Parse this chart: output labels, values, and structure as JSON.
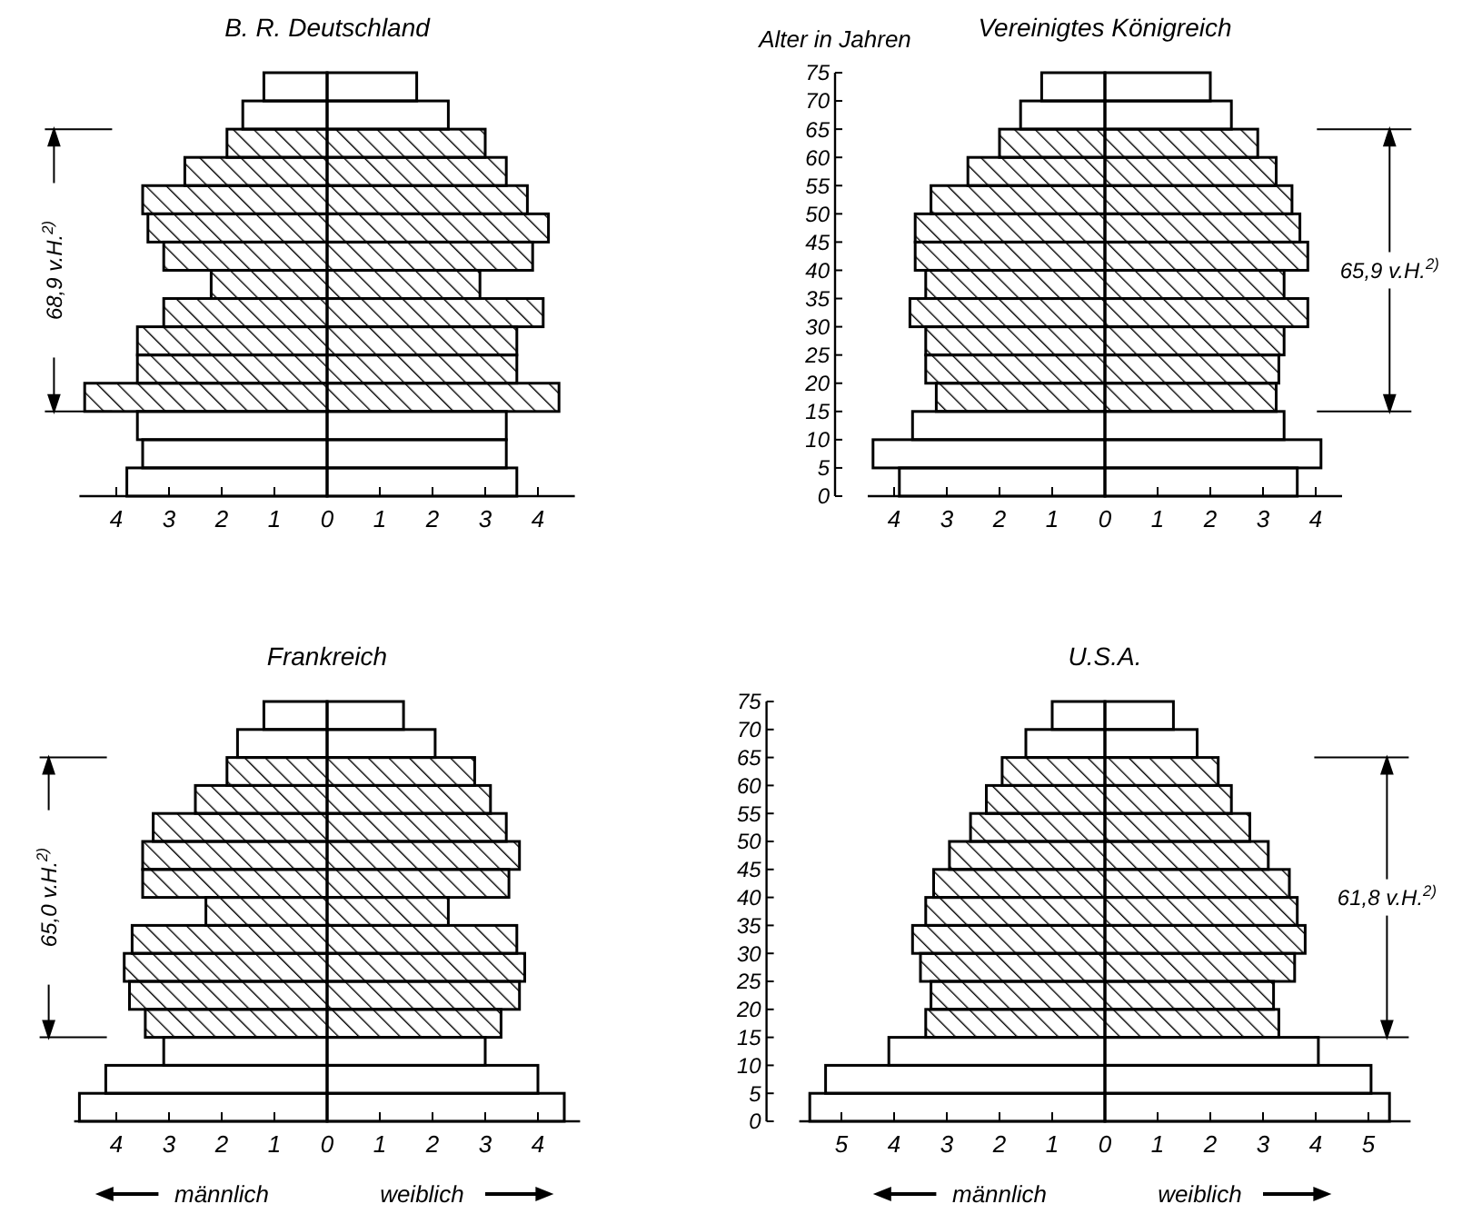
{
  "chart_data": [
    {
      "type": "histogram",
      "orientation": "horizontal",
      "title": "B. R. Deutschland",
      "bins": [
        0,
        5,
        10,
        15,
        20,
        25,
        30,
        35,
        40,
        45,
        50,
        55,
        60,
        65,
        70,
        75
      ],
      "series": [
        {
          "values": [
            -3.8,
            -3.5,
            -3.6,
            -4.6,
            -3.6,
            -3.6,
            -3.1,
            -2.2,
            -3.1,
            -3.4,
            -3.5,
            -2.7,
            -1.9,
            -1.6,
            -1.2
          ]
        },
        {
          "values": [
            3.6,
            3.4,
            3.4,
            4.4,
            3.6,
            3.6,
            4.1,
            2.9,
            3.9,
            4.2,
            3.8,
            3.4,
            3.0,
            2.3,
            1.7
          ]
        }
      ],
      "xlim": [
        -4.7,
        4.7
      ],
      "xticks": [
        {
          "value": -4,
          "label": "4"
        },
        {
          "value": -3,
          "label": "3"
        },
        {
          "value": -2,
          "label": "2"
        },
        {
          "value": -1,
          "label": "1"
        },
        0,
        1,
        2,
        3,
        4
      ],
      "ylim": [
        0,
        75
      ],
      "tick_labels": "x",
      "bands": [
        {
          "axis": "y",
          "from": 15,
          "to": 65,
          "label": "68,9 v.H.$^{2)}$"
        }
      ]
    },
    {
      "type": "histogram",
      "orientation": "horizontal",
      "title": "Vereinigtes Königreich",
      "ylabel": "Alter in Jahren",
      "bins": [
        0,
        5,
        10,
        15,
        20,
        25,
        30,
        35,
        40,
        45,
        50,
        55,
        60,
        65,
        70,
        75
      ],
      "series": [
        {
          "values": [
            -3.9,
            -4.4,
            -3.65,
            -3.2,
            -3.4,
            -3.4,
            -3.7,
            -3.4,
            -3.6,
            -3.6,
            -3.3,
            -2.6,
            -2.0,
            -1.6,
            -1.2
          ]
        },
        {
          "values": [
            3.65,
            4.1,
            3.4,
            3.25,
            3.3,
            3.4,
            3.85,
            3.4,
            3.85,
            3.7,
            3.55,
            3.25,
            2.9,
            2.4,
            2.0
          ]
        }
      ],
      "xlim": [
        -4.5,
        4.5
      ],
      "xticks": [
        {
          "value": -4,
          "label": "4"
        },
        {
          "value": -3,
          "label": "3"
        },
        {
          "value": -2,
          "label": "2"
        },
        {
          "value": -1,
          "label": "1"
        },
        0,
        1,
        2,
        3,
        4
      ],
      "ylim": [
        0,
        75
      ],
      "yticks": [
        0,
        5,
        10,
        15,
        20,
        25,
        30,
        35,
        40,
        45,
        50,
        55,
        60,
        65,
        70,
        75
      ],
      "bands": [
        {
          "axis": "y",
          "from": 15,
          "to": 65,
          "label": "65,9 v.H.$^{2)}$"
        }
      ]
    },
    {
      "type": "histogram",
      "orientation": "horizontal",
      "title": "Frankreich",
      "bins": [
        0,
        5,
        10,
        15,
        20,
        25,
        30,
        35,
        40,
        45,
        50,
        55,
        60,
        65,
        70,
        75
      ],
      "series": [
        {
          "name": "männlich",
          "values": [
            -4.7,
            -4.2,
            -3.1,
            -3.45,
            -3.75,
            -3.85,
            -3.7,
            -2.3,
            -3.5,
            -3.5,
            -3.3,
            -2.5,
            -1.9,
            -1.7,
            -1.2
          ]
        },
        {
          "name": "weiblich",
          "values": [
            4.5,
            4.0,
            3.0,
            3.3,
            3.65,
            3.75,
            3.6,
            2.3,
            3.45,
            3.65,
            3.4,
            3.1,
            2.8,
            2.05,
            1.45
          ]
        }
      ],
      "xlim": [
        -4.8,
        4.8
      ],
      "xticks": [
        {
          "value": -4,
          "label": "4"
        },
        {
          "value": -3,
          "label": "3"
        },
        {
          "value": -2,
          "label": "2"
        },
        {
          "value": -1,
          "label": "1"
        },
        0,
        1,
        2,
        3,
        4
      ],
      "ylim": [
        0,
        75
      ],
      "tick_labels": "x",
      "legend": "bottom",
      "bands": [
        {
          "axis": "y",
          "from": 15,
          "to": 65,
          "label": "65,0 v.H.$^{2)}$"
        }
      ]
    },
    {
      "type": "histogram",
      "orientation": "horizontal",
      "title": "U.S.A.",
      "bins": [
        0,
        5,
        10,
        15,
        20,
        25,
        30,
        35,
        40,
        45,
        50,
        55,
        60,
        65,
        70,
        75
      ],
      "series": [
        {
          "name": "männlich",
          "values": [
            -5.6,
            -5.3,
            -4.1,
            -3.4,
            -3.3,
            -3.5,
            -3.65,
            -3.4,
            -3.25,
            -2.95,
            -2.55,
            -2.25,
            -1.95,
            -1.5,
            -1.0
          ]
        },
        {
          "name": "weiblich",
          "values": [
            5.4,
            5.05,
            4.05,
            3.3,
            3.2,
            3.6,
            3.8,
            3.65,
            3.5,
            3.1,
            2.75,
            2.4,
            2.15,
            1.75,
            1.3
          ]
        }
      ],
      "xlim": [
        -5.8,
        5.8
      ],
      "xticks": [
        {
          "value": -5,
          "label": "5"
        },
        {
          "value": -4,
          "label": "4"
        },
        {
          "value": -3,
          "label": "3"
        },
        {
          "value": -2,
          "label": "2"
        },
        {
          "value": -1,
          "label": "1"
        },
        0,
        1,
        2,
        3,
        4,
        5
      ],
      "ylim": [
        0,
        75
      ],
      "yticks": [
        0,
        5,
        10,
        15,
        20,
        25,
        30,
        35,
        40,
        45,
        50,
        55,
        60,
        65,
        70,
        75
      ],
      "legend": "bottom",
      "bands": [
        {
          "axis": "y",
          "from": 15,
          "to": 65,
          "label": "61,8 v.H.$^{2)}$"
        }
      ]
    }
  ]
}
